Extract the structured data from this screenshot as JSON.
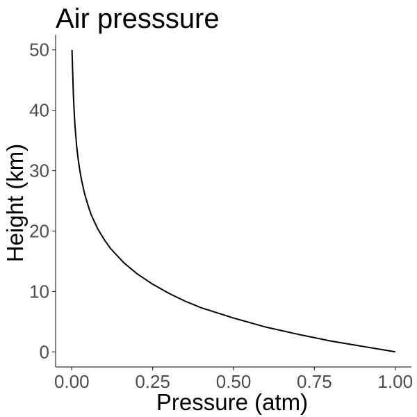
{
  "chart_data": {
    "type": "line",
    "title": "Air presssure",
    "xlabel": "Pressure (atm)",
    "ylabel": "Height (km)",
    "xlim": [
      -0.05,
      1.05
    ],
    "ylim": [
      -2.5,
      52.5
    ],
    "x_ticks": [
      0.0,
      0.25,
      0.5,
      0.75,
      1.0
    ],
    "x_tick_labels": [
      "0.00",
      "0.25",
      "0.50",
      "0.75",
      "1.00"
    ],
    "y_ticks": [
      0,
      10,
      20,
      30,
      40,
      50
    ],
    "y_tick_labels": [
      "0",
      "10",
      "20",
      "30",
      "40",
      "50"
    ],
    "grid": false,
    "series": [
      {
        "color": "#000000",
        "x": [
          1.0,
          0.9,
          0.8,
          0.7,
          0.6,
          0.5,
          0.4,
          0.35,
          0.3,
          0.25,
          0.2,
          0.16,
          0.12,
          0.1,
          0.08,
          0.06,
          0.05,
          0.04,
          0.03,
          0.025,
          0.02,
          0.015,
          0.01,
          0.007,
          0.005,
          0.003,
          0.0015,
          0.0007
        ],
        "y": [
          0.0,
          0.9,
          1.8,
          2.9,
          4.1,
          5.6,
          7.3,
          8.4,
          9.7,
          11.2,
          13.0,
          14.8,
          17.1,
          18.6,
          20.4,
          22.7,
          24.3,
          26.1,
          28.5,
          30.0,
          31.8,
          34.1,
          37.4,
          40.2,
          42.5,
          46.0,
          48.5,
          50.0
        ]
      }
    ]
  }
}
